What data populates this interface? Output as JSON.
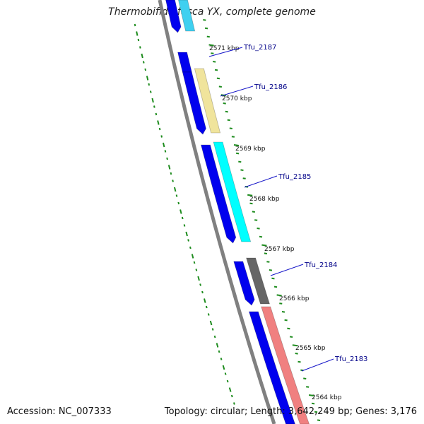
{
  "title": "Thermobifida fusca YX, complete genome",
  "accession": "Accession: NC_007333",
  "summary": "Topology: circular; Length: 3,642,249 bp; Genes: 3,176",
  "colors": {
    "backbone": "#808080",
    "gc_ticks": "#1e8c1e",
    "cds": "#0000ee",
    "link": "#1414c8",
    "label": "#000088"
  },
  "scale_labels": [
    "2571 kbp",
    "2570 kbp",
    "2569 kbp",
    "2568 kbp",
    "2567 kbp",
    "2566 kbp",
    "2565 kbp",
    "2564 kbp"
  ],
  "genes": [
    {
      "name": "Tfu_2187",
      "color": "#f2e6a6"
    },
    {
      "name": "Tfu_2186",
      "color": "#f0e49c"
    },
    {
      "name": "Tfu_2185",
      "color": "#00ffff"
    },
    {
      "name": "Tfu_2184",
      "color": "#666666"
    },
    {
      "name": "Tfu_2183",
      "color": "#f08080"
    }
  ]
}
